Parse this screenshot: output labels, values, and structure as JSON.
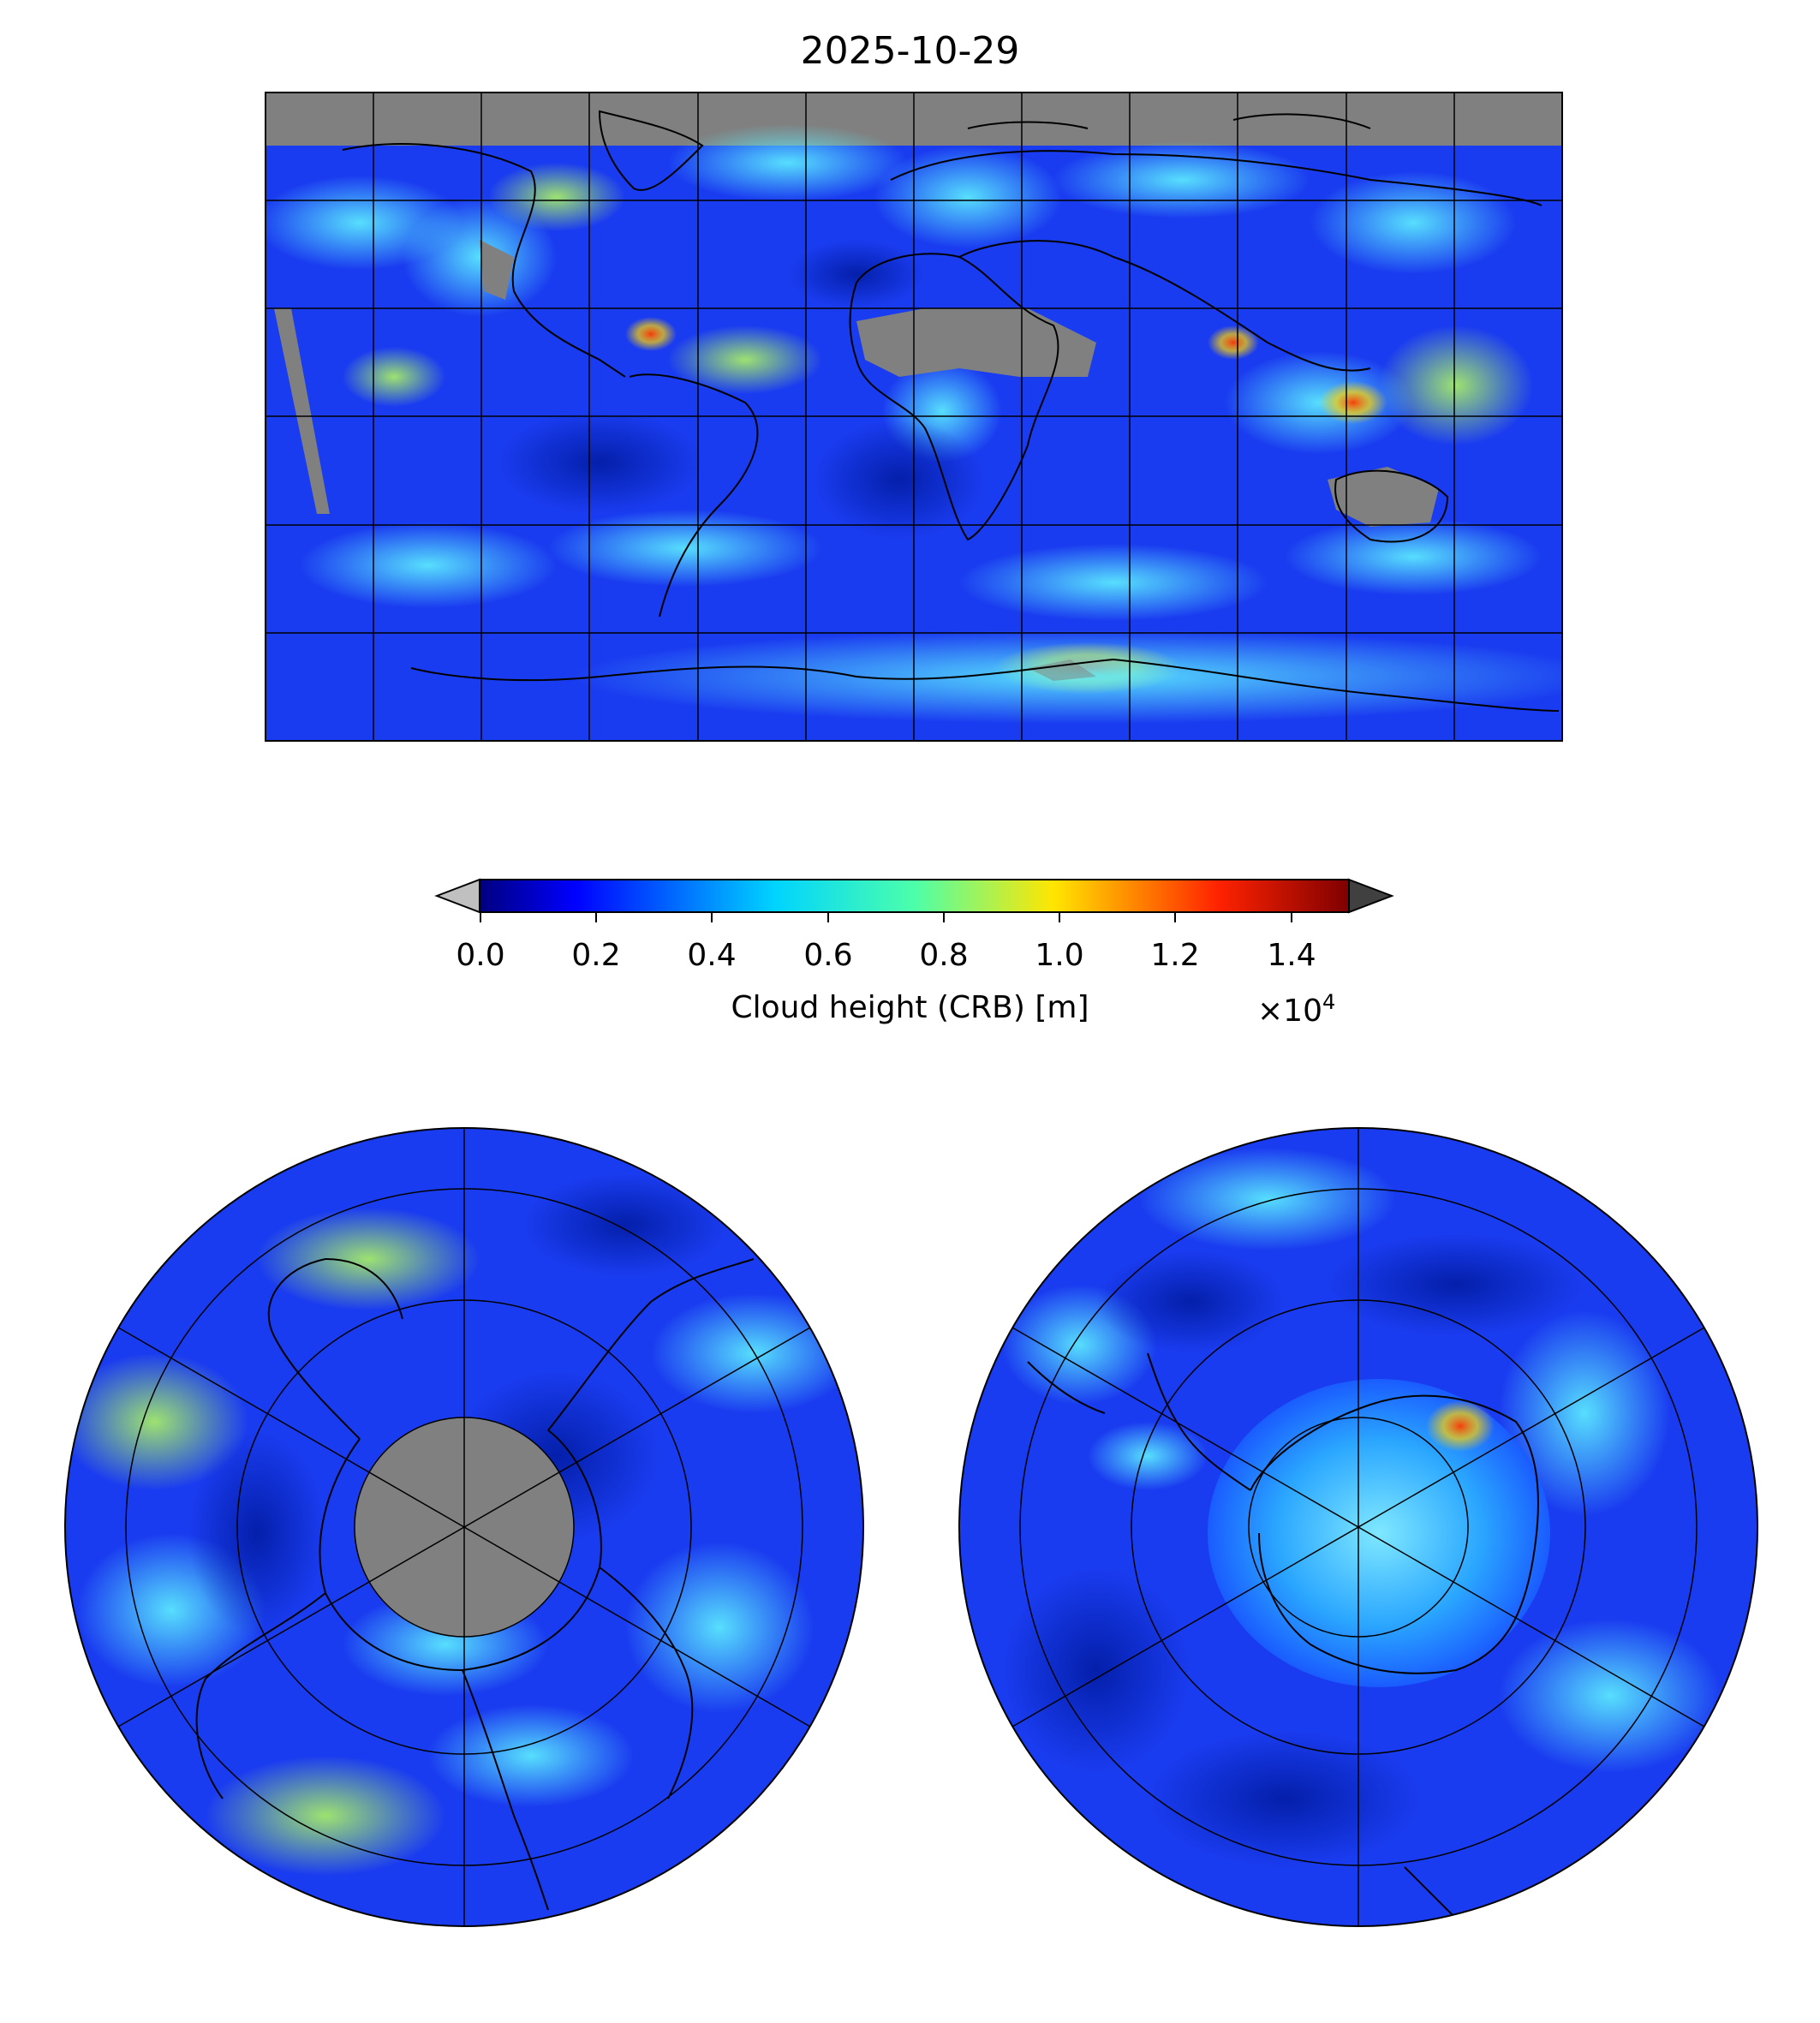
{
  "title": "2025-10-29",
  "colorbar": {
    "label": "Cloud height (CRB) [m]",
    "multiplier_prefix": "×10",
    "multiplier_exponent": "4",
    "ticks": [
      "0.0",
      "0.2",
      "0.4",
      "0.6",
      "0.8",
      "1.0",
      "1.2",
      "1.4"
    ],
    "range": [
      0,
      1.5
    ],
    "colormap": "jet",
    "under_color": "#c0c0c0",
    "over_color": "#404040"
  },
  "colors": {
    "missing_data": "#808080",
    "background_field": "#1a3cf0"
  },
  "panels": [
    {
      "name": "global-map",
      "projection": "plate-carree",
      "graticule_step_degrees": 30
    },
    {
      "name": "north-polar-map",
      "projection": "north-polar-stereographic"
    },
    {
      "name": "south-polar-map",
      "projection": "south-polar-stereographic"
    }
  ]
}
